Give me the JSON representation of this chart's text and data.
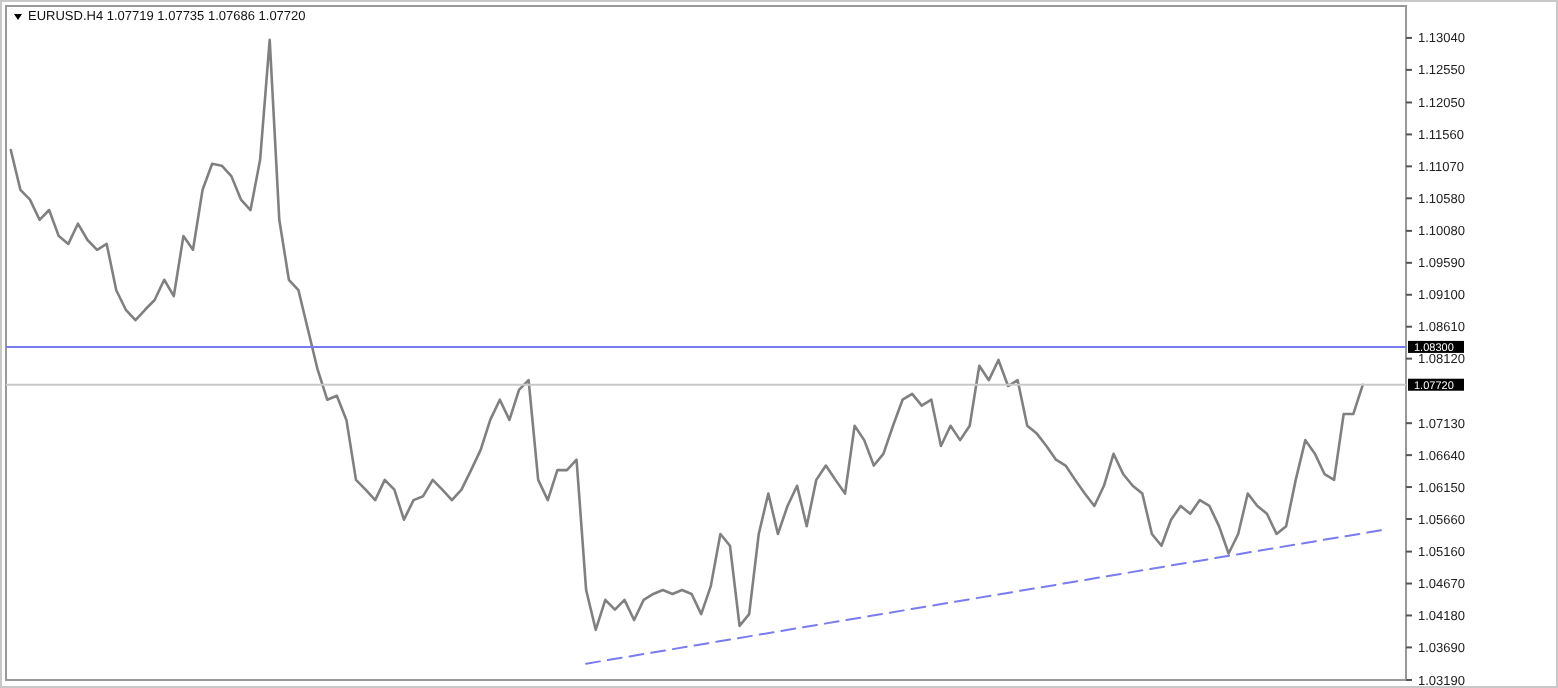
{
  "chart_data": {
    "type": "line",
    "title": "EURUSD.H4  1.07719 1.07735 1.07686 1.07720",
    "categories": [
      null,
      null,
      null,
      null,
      null,
      null,
      null,
      null,
      null,
      null,
      null,
      null,
      null,
      null,
      null,
      null,
      null,
      null,
      null,
      null,
      null,
      null,
      null,
      null,
      null,
      null,
      null,
      null,
      null,
      null,
      null,
      null,
      null,
      null,
      null,
      null,
      null,
      null,
      null,
      null,
      null,
      null,
      null,
      null,
      null,
      null,
      null,
      null,
      null,
      null,
      null,
      null,
      null,
      null,
      null,
      null,
      null,
      null,
      null,
      null,
      null,
      null,
      null,
      null,
      null,
      null,
      null,
      null,
      null,
      null,
      null,
      null,
      null,
      null,
      null,
      null,
      null,
      null,
      null,
      null,
      null,
      null,
      null,
      null,
      null,
      null,
      null,
      null,
      null,
      null,
      null,
      null,
      null,
      null,
      null,
      null,
      null,
      null,
      null,
      null,
      null,
      null,
      null,
      null,
      null,
      null,
      null,
      null,
      null,
      null,
      null,
      null,
      null,
      null,
      null,
      null,
      null,
      null,
      null,
      null,
      null,
      null,
      null,
      null,
      null,
      null,
      null,
      null,
      null,
      null,
      null,
      null,
      null,
      null,
      null,
      null,
      null,
      null,
      null,
      null,
      null,
      null,
      null,
      null,
      null,
      null
    ],
    "ylim": [
      1.0319,
      1.1353
    ],
    "yticks": [
      {
        "value": 1.0319,
        "label": "1.03190"
      },
      {
        "value": 1.0369,
        "label": "1.03690"
      },
      {
        "value": 1.0418,
        "label": "1.04180"
      },
      {
        "value": 1.0467,
        "label": "1.04670"
      },
      {
        "value": 1.0516,
        "label": "1.05160"
      },
      {
        "value": 1.0566,
        "label": "1.05660"
      },
      {
        "value": 1.0615,
        "label": "1.06150"
      },
      {
        "value": 1.0664,
        "label": "1.06640"
      },
      {
        "value": 1.0713,
        "label": "1.07130"
      },
      {
        "value": 1.0812,
        "label": "1.08120"
      },
      {
        "value": 1.0861,
        "label": "1.08610"
      },
      {
        "value": 1.091,
        "label": "1.09100"
      },
      {
        "value": 1.0959,
        "label": "1.09590"
      },
      {
        "value": 1.1008,
        "label": "1.10080"
      },
      {
        "value": 1.1058,
        "label": "1.10580"
      },
      {
        "value": 1.1107,
        "label": "1.11070"
      },
      {
        "value": 1.1156,
        "label": "1.11560"
      },
      {
        "value": 1.1205,
        "label": "1.12050"
      },
      {
        "value": 1.1255,
        "label": "1.12550"
      },
      {
        "value": 1.1304,
        "label": "1.13040"
      }
    ],
    "tick_labels": "y",
    "series": [
      {
        "color": "#808080",
        "line_style": "solid",
        "values": [
          1.1132,
          1.1071,
          1.1056,
          1.1025,
          1.104,
          1.1,
          1.0988,
          1.1019,
          1.0994,
          1.0979,
          1.0988,
          1.0917,
          1.0887,
          1.0871,
          1.0887,
          1.0902,
          1.0933,
          1.0908,
          1.1,
          1.0979,
          1.1071,
          1.1111,
          1.1108,
          1.1092,
          1.1056,
          1.104,
          1.1117,
          1.1301,
          1.1025,
          1.0933,
          1.0917,
          1.0856,
          1.0795,
          1.0749,
          1.0755,
          1.0718,
          1.0626,
          1.0611,
          1.0595,
          1.0626,
          1.0611,
          1.0565,
          1.0595,
          1.0601,
          1.0626,
          1.0611,
          1.0595,
          1.0611,
          1.0641,
          1.0672,
          1.0718,
          1.0749,
          1.0718,
          1.0764,
          1.0779,
          1.0626,
          1.0595,
          1.0641,
          1.0641,
          1.0657,
          1.0457,
          1.0396,
          1.0442,
          1.0427,
          1.0442,
          1.0411,
          1.0442,
          1.0451,
          1.0457,
          1.0451,
          1.0457,
          1.0451,
          1.042,
          1.0463,
          1.0543,
          1.0525,
          1.0402,
          1.042,
          1.0543,
          1.0605,
          1.0543,
          1.0586,
          1.0617,
          1.0555,
          1.0626,
          1.0648,
          1.0626,
          1.0605,
          1.0709,
          1.0687,
          1.0648,
          1.0666,
          1.0709,
          1.0749,
          1.0758,
          1.074,
          1.0749,
          1.0678,
          1.0709,
          1.0687,
          1.0709,
          1.0801,
          1.0779,
          1.081,
          1.077,
          1.0779,
          1.0709,
          1.0697,
          1.0678,
          1.0657,
          1.0648,
          1.0626,
          1.0605,
          1.0586,
          1.0617,
          1.0666,
          1.0635,
          1.0617,
          1.0605,
          1.0543,
          1.0525,
          1.0565,
          1.0586,
          1.0574,
          1.0595,
          1.0586,
          1.0555,
          1.0513,
          1.0543,
          1.0605,
          1.0586,
          1.0574,
          1.0543,
          1.0555,
          1.0626,
          1.0687,
          1.0666,
          1.0635,
          1.0626,
          1.0727,
          1.0727,
          1.0772,
          null,
          null,
          null,
          null
        ]
      },
      {
        "color": "#7b7bf0",
        "line_style": "dashed",
        "values": [
          null,
          null,
          null,
          null,
          null,
          null,
          null,
          null,
          null,
          null,
          null,
          null,
          null,
          null,
          null,
          null,
          null,
          null,
          null,
          null,
          null,
          null,
          null,
          null,
          null,
          null,
          null,
          null,
          null,
          null,
          null,
          null,
          null,
          null,
          null,
          null,
          null,
          null,
          null,
          null,
          null,
          null,
          null,
          null,
          null,
          null,
          null,
          null,
          null,
          null,
          null,
          null,
          null,
          null,
          null,
          null,
          null,
          null,
          null,
          null,
          1.0344,
          null,
          null,
          null,
          null,
          null,
          null,
          null,
          null,
          null,
          null,
          null,
          null,
          null,
          null,
          null,
          null,
          null,
          null,
          null,
          null,
          null,
          null,
          null,
          null,
          null,
          null,
          null,
          null,
          null,
          null,
          null,
          null,
          null,
          null,
          null,
          null,
          null,
          null,
          null,
          null,
          null,
          null,
          null,
          null,
          null,
          null,
          null,
          null,
          null,
          null,
          null,
          null,
          null,
          null,
          null,
          null,
          null,
          null,
          null,
          null,
          null,
          null,
          null,
          null,
          null,
          null,
          null,
          null,
          null,
          null,
          null,
          null,
          null,
          null,
          null,
          null,
          null,
          null,
          null,
          null,
          null,
          null,
          1.0549,
          null,
          null
        ]
      }
    ],
    "ref_lines": [
      {
        "axis": "y",
        "value": 1.083,
        "label": "1.08300",
        "color": "#7b7bf0"
      },
      {
        "axis": "y",
        "value": 1.0772,
        "label": "1.07720",
        "color": "#c8c8c8"
      }
    ]
  }
}
